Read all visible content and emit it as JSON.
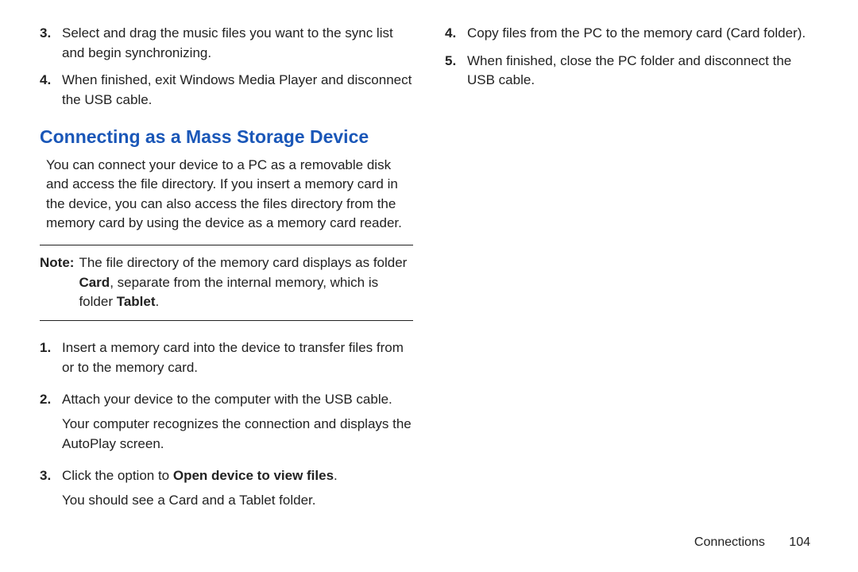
{
  "colors": {
    "heading": "#1a57b8",
    "text": "#222222",
    "rule": "#222222",
    "background": "#ffffff"
  },
  "left": {
    "topList": [
      {
        "num": "3.",
        "text": "Select and drag the music files you want to the sync list and begin synchronizing."
      },
      {
        "num": "4.",
        "text": "When finished, exit Windows Media Player and disconnect the USB cable."
      }
    ],
    "heading": "Connecting as a Mass Storage Device",
    "intro": "You can connect your device to a PC as a removable disk and access the file directory. If you insert a memory card in the device, you can also access the files directory from the memory card by using the device as a memory card reader.",
    "note": {
      "label": "Note:",
      "text_pre": "The file directory of the memory card displays as folder ",
      "bold1": "Card",
      "text_mid": ", separate from the internal memory, which is folder ",
      "bold2": "Tablet",
      "text_post": "."
    },
    "steps": [
      {
        "num": "1.",
        "lines": [
          "Insert a memory card into the device to transfer files from or to the memory card."
        ]
      },
      {
        "num": "2.",
        "lines": [
          "Attach your device to the computer with the USB cable.",
          "Your computer recognizes the connection and displays the AutoPlay screen."
        ]
      },
      {
        "num": "3.",
        "lines_pre": "Click the option to ",
        "bold": "Open device to view files",
        "lines_post": ".",
        "extra": "You should see a Card and a Tablet folder."
      }
    ]
  },
  "right": {
    "list": [
      {
        "num": "4.",
        "text": "Copy files from the PC to the memory card (Card folder)."
      },
      {
        "num": "5.",
        "text": "When finished, close the PC folder and disconnect the USB cable."
      }
    ]
  },
  "footer": {
    "section": "Connections",
    "page": "104"
  }
}
